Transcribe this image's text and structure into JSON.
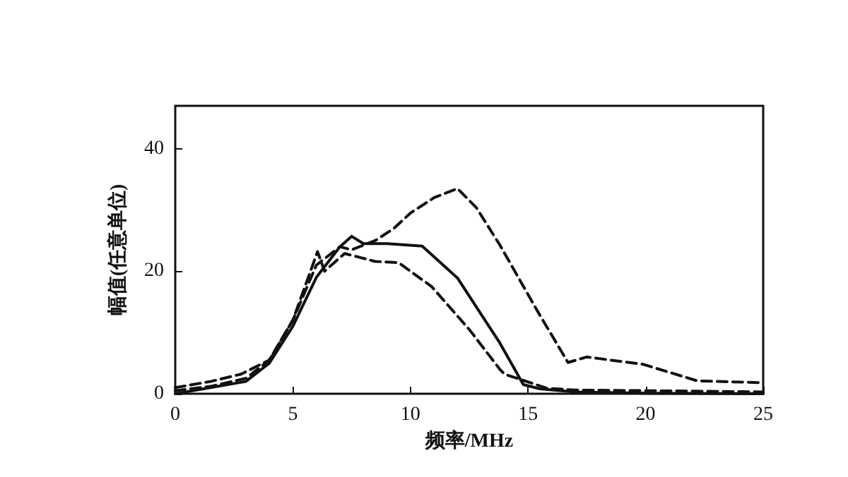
{
  "chart_data": {
    "type": "line",
    "xlabel": "频率/MHz",
    "ylabel": "幅值(任意单位)",
    "xlim": [
      0,
      25
    ],
    "ylim": [
      0,
      47
    ],
    "xticks": [
      0,
      5,
      10,
      15,
      20,
      25
    ],
    "yticks": [
      0,
      20,
      40
    ],
    "grid": false,
    "marker": "none",
    "series": [
      {
        "color": "#111111",
        "line_style": "solid",
        "x": [
          0,
          1.5,
          3,
          4,
          5,
          6,
          7,
          7.5,
          8,
          9,
          10.5,
          12,
          13,
          13.8,
          14.8,
          15.5,
          17,
          20,
          25
        ],
        "values": [
          0,
          1,
          2,
          5,
          11,
          19,
          24,
          25.7,
          24.5,
          24.5,
          24.1,
          18.9,
          13,
          8.3,
          1.5,
          0.8,
          0.3,
          0.1,
          0
        ]
      },
      {
        "color": "#111111",
        "line_style": "dashed",
        "x": [
          0,
          1.5,
          3,
          4,
          5,
          6.05,
          6.35,
          7.2,
          8.5,
          9.5,
          10.9,
          12.5,
          13.8,
          14.0,
          15.8,
          17,
          20,
          25
        ],
        "values": [
          0.5,
          1.2,
          2.5,
          5.5,
          12,
          23.2,
          20,
          22.9,
          21.6,
          21.4,
          17.5,
          10.5,
          4,
          3.2,
          0.9,
          0.6,
          0.5,
          0.3
        ]
      },
      {
        "color": "#111111",
        "line_style": "dashed",
        "x": [
          0,
          1.5,
          2.8,
          4,
          5,
          6,
          7,
          7.5,
          8.5,
          9.3,
          10,
          11,
          12,
          12.8,
          13.8,
          15.4,
          16.7,
          17.5,
          19.9,
          22.2,
          25
        ],
        "values": [
          1,
          2,
          3.2,
          5.5,
          12,
          21,
          24,
          23.5,
          25,
          27,
          29.5,
          32,
          33.5,
          30.4,
          24.3,
          13.5,
          5.1,
          6,
          4.8,
          2.1,
          1.8
        ]
      }
    ]
  }
}
